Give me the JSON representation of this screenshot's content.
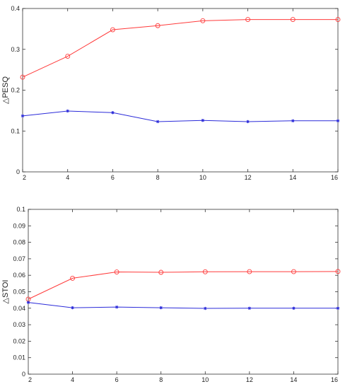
{
  "chart_data": [
    {
      "type": "line",
      "ylabel": "△PESQ",
      "xlabel": "",
      "x": [
        2,
        4,
        6,
        8,
        10,
        12,
        14,
        16
      ],
      "xlim": [
        2,
        16
      ],
      "ylim": [
        0,
        0.4
      ],
      "xticks": [
        "2",
        "4",
        "6",
        "8",
        "10",
        "12",
        "14",
        "16"
      ],
      "yticks": [
        "0",
        "0.1",
        "0.2",
        "0.3",
        "0.4"
      ],
      "grid": false,
      "series": [
        {
          "color": "#ff3b3b",
          "marker": "circle",
          "values": [
            0.232,
            0.283,
            0.348,
            0.358,
            0.37,
            0.373,
            0.373,
            0.373
          ]
        },
        {
          "color": "#2b2bd9",
          "marker": "asterisk",
          "values": [
            0.137,
            0.149,
            0.145,
            0.123,
            0.126,
            0.123,
            0.125,
            0.125
          ]
        }
      ]
    },
    {
      "type": "line",
      "ylabel": "△STOI",
      "xlabel": "",
      "x": [
        2,
        4,
        6,
        8,
        10,
        12,
        14,
        16
      ],
      "xlim": [
        2,
        16
      ],
      "ylim": [
        0,
        0.1
      ],
      "xticks": [
        "2",
        "4",
        "6",
        "8",
        "10",
        "12",
        "14",
        "16"
      ],
      "yticks": [
        "0",
        "0.01",
        "0.02",
        "0.03",
        "0.04",
        "0.05",
        "0.06",
        "0.07",
        "0.08",
        "0.09",
        "0.1"
      ],
      "grid": false,
      "series": [
        {
          "color": "#ff3b3b",
          "marker": "circle",
          "values": [
            0.0455,
            0.0582,
            0.062,
            0.0618,
            0.0621,
            0.0622,
            0.0622,
            0.0623
          ]
        },
        {
          "color": "#2b2bd9",
          "marker": "asterisk",
          "values": [
            0.0435,
            0.0403,
            0.0407,
            0.0403,
            0.0399,
            0.04,
            0.04,
            0.04
          ]
        }
      ]
    }
  ]
}
